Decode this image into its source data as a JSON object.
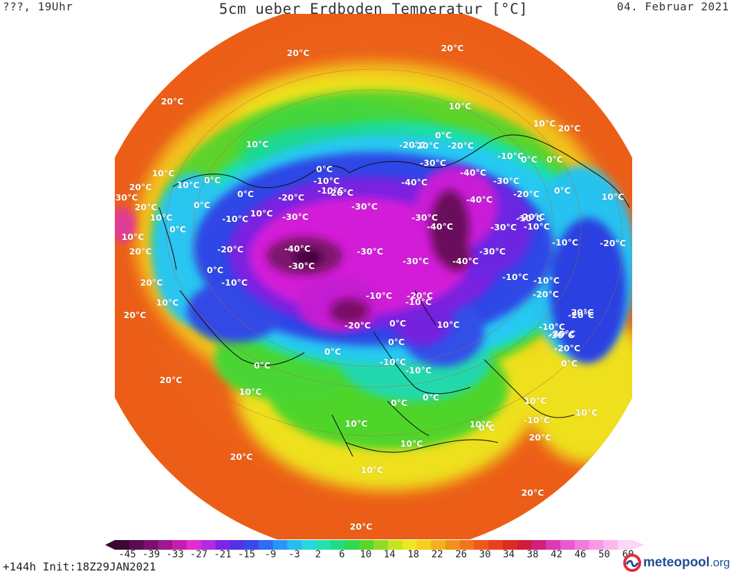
{
  "header": {
    "left": "???, 19Uhr",
    "title": "5cm ueber Erdboden Temperatur [°C]",
    "date": "04. Februar 2021"
  },
  "footer": {
    "forecast": "+144h Init:18Z29JAN2021",
    "logo_text": "meteopool",
    "logo_domain": ".org"
  },
  "colors": {
    "warm_outer": "#f2711d",
    "deep_warm": "#e55a12",
    "yellow": "#f0e81e",
    "green": "#4ad62a",
    "teal": "#1fe0a6",
    "cyan": "#25c9f2",
    "blue": "#2f47e6",
    "violet": "#7a22e0",
    "magenta": "#d21ad8",
    "dark_purple": "#40063a"
  },
  "color_scale": {
    "ticks": [
      "-45",
      "-39",
      "-33",
      "-27",
      "-21",
      "-15",
      "-9",
      "-3",
      "2",
      "6",
      "10",
      "14",
      "18",
      "22",
      "26",
      "30",
      "34",
      "38",
      "42",
      "46",
      "50",
      "60"
    ],
    "stops": [
      "#3d0633",
      "#5a0c4f",
      "#7a116d",
      "#9e1a8c",
      "#c41fb0",
      "#e42bd2",
      "#b52ae0",
      "#7d25e6",
      "#5530e8",
      "#3a48ec",
      "#2f6df0",
      "#2a95f4",
      "#27bbf2",
      "#26d8e0",
      "#22e0b0",
      "#1fdc82",
      "#2fd84e",
      "#5ad62a",
      "#8fdc24",
      "#c6e41e",
      "#eee71d",
      "#f5cf1a",
      "#f5b01a",
      "#f4911a",
      "#f2741c",
      "#ee5a1c",
      "#e7421e",
      "#dc2c22",
      "#d21c3c",
      "#d0207a",
      "#dc3ab2",
      "#e85ad0",
      "#f27adc",
      "#f79ae4",
      "#fab8ec",
      "#fdd6f4"
    ]
  },
  "labels": [
    {
      "text": "20°C"
    },
    {
      "text": "20°C"
    },
    {
      "text": "20°C"
    },
    {
      "text": "10°C"
    },
    {
      "text": "10°C"
    },
    {
      "text": "0°C"
    },
    {
      "text": "10°C"
    },
    {
      "text": "20°C"
    },
    {
      "text": "-20°C"
    },
    {
      "text": "-20°C"
    },
    {
      "text": "0°C"
    },
    {
      "text": "-10°C"
    },
    {
      "text": "-30°C"
    },
    {
      "text": "-40°C"
    },
    {
      "text": "-30°C"
    },
    {
      "text": "-10°C"
    },
    {
      "text": "0°C"
    },
    {
      "text": "10°C"
    },
    {
      "text": "20°C"
    },
    {
      "text": "30°C"
    },
    {
      "text": "20°C"
    },
    {
      "text": "0°C"
    },
    {
      "text": "-20°C"
    },
    {
      "text": "-10°C"
    },
    {
      "text": "-20°C"
    },
    {
      "text": "-30°C"
    },
    {
      "text": "-40°C"
    },
    {
      "text": "-20°C"
    },
    {
      "text": "-10°C"
    },
    {
      "text": "0°C"
    },
    {
      "text": "10°C"
    },
    {
      "text": "0°C"
    },
    {
      "text": "10°C"
    },
    {
      "text": "-30°C"
    },
    {
      "text": "-40°C"
    },
    {
      "text": "-30°C"
    },
    {
      "text": "-30°C"
    },
    {
      "text": "-40°C"
    },
    {
      "text": "-20°C"
    },
    {
      "text": "-10°C"
    },
    {
      "text": "-40°C"
    },
    {
      "text": "-30°C"
    },
    {
      "text": "-30°C"
    },
    {
      "text": "-40°C"
    },
    {
      "text": "-30°C"
    },
    {
      "text": "-10°C"
    },
    {
      "text": "-10°C"
    },
    {
      "text": "-20°C"
    },
    {
      "text": "-20°C"
    },
    {
      "text": "-30°C"
    },
    {
      "text": "-20°C"
    },
    {
      "text": "-10°C"
    },
    {
      "text": "0°C"
    },
    {
      "text": "-10°C"
    },
    {
      "text": "-20°C"
    },
    {
      "text": "-10°C"
    },
    {
      "text": "0°C"
    },
    {
      "text": "10°C"
    },
    {
      "text": "20°C"
    },
    {
      "text": "20°C"
    },
    {
      "text": "10°C"
    },
    {
      "text": "20°C"
    },
    {
      "text": "10°C"
    },
    {
      "text": "0°C"
    },
    {
      "text": "-10°C"
    },
    {
      "text": "0°C"
    },
    {
      "text": "-20°C"
    },
    {
      "text": "-10°C"
    },
    {
      "text": "0°C"
    },
    {
      "text": "-20°C"
    },
    {
      "text": "-30°C"
    },
    {
      "text": "-20°C"
    },
    {
      "text": "0°C"
    },
    {
      "text": "10°C"
    },
    {
      "text": "10°C"
    },
    {
      "text": "20°C"
    },
    {
      "text": "20°C"
    },
    {
      "text": "10°C"
    },
    {
      "text": "0°C"
    },
    {
      "text": "0°C"
    },
    {
      "text": "-10°C"
    },
    {
      "text": "10°C"
    },
    {
      "text": "10°C"
    },
    {
      "text": "0°C"
    },
    {
      "text": "20°C"
    },
    {
      "text": "10°C"
    },
    {
      "text": "10°C"
    },
    {
      "text": "20°C"
    },
    {
      "text": "20°C"
    },
    {
      "text": "-10°C"
    },
    {
      "text": "-20°C"
    },
    {
      "text": "-10°C"
    },
    {
      "text": "-30°C"
    },
    {
      "text": "0°C"
    },
    {
      "text": "20°C"
    },
    {
      "text": "-10°C"
    },
    {
      "text": "0°C"
    },
    {
      "text": "10°C"
    },
    {
      "text": "0°C"
    },
    {
      "text": "10°C"
    }
  ]
}
